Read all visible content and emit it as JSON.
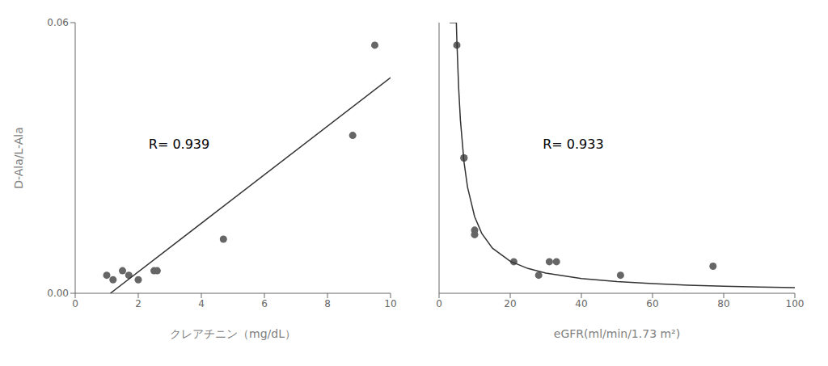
{
  "chart_data": [
    {
      "type": "scatter",
      "xlabel": "クレアチニン（mg/dL）",
      "ylabel": "D-Ala/L-Ala",
      "xlim": [
        0,
        10
      ],
      "ylim": [
        0,
        0.06
      ],
      "xticks": [
        0,
        2,
        4,
        6,
        8,
        10
      ],
      "yticks": [
        {
          "value": 0,
          "label": "0.00"
        },
        0.06
      ],
      "grid": false,
      "series": [
        {
          "type": "scatter",
          "color": "#666666",
          "x": [
            1.0,
            1.2,
            1.5,
            1.7,
            2.0,
            2.5,
            2.6,
            4.7,
            8.8,
            9.5
          ],
          "values": [
            0.004,
            0.003,
            0.005,
            0.004,
            0.003,
            0.005,
            0.005,
            0.012,
            0.035,
            0.055
          ]
        },
        {
          "type": "line",
          "color": "#333333",
          "x": [
            1.115,
            10
          ],
          "values": [
            0,
            0.0478
          ]
        }
      ],
      "annotations": [
        {
          "text": "R= 0.939",
          "x": 2.2,
          "y": 0.033
        }
      ]
    },
    {
      "type": "scatter",
      "xlabel": "eGFR(ml/min/1.73 m²)",
      "xlim": [
        0,
        100
      ],
      "ylim": [
        0,
        0.06
      ],
      "xticks": [
        0,
        20,
        40,
        60,
        80,
        100
      ],
      "yticks": [
        0,
        0.06
      ],
      "tick_labels": "x",
      "grid": false,
      "series": [
        {
          "type": "scatter",
          "color": "#666666",
          "x": [
            5,
            7,
            7,
            10,
            10,
            21,
            28,
            31,
            33,
            51,
            77
          ],
          "values": [
            0.055,
            0.03,
            0.03,
            0.014,
            0.013,
            0.007,
            0.004,
            0.007,
            0.007,
            0.004,
            0.006
          ]
        },
        {
          "type": "line",
          "color": "#333333",
          "x": [
            3,
            4.86,
            5,
            5.5,
            6,
            7,
            8,
            10,
            12,
            15,
            20,
            25,
            30,
            40,
            50,
            60,
            70,
            80,
            90,
            100
          ],
          "values": [
            0.06,
            0.06,
            0.05608,
            0.04558,
            0.03839,
            0.02918,
            0.02354,
            0.01697,
            0.01327,
            0.01,
            0.00709,
            0.00549,
            0.00448,
            0.00327,
            0.00258,
            0.00213,
            0.00181,
            0.00158,
            0.0014,
            0.00125
          ]
        }
      ],
      "annotations": [
        {
          "text": "R= 0.933",
          "x": 28,
          "y": 0.033
        }
      ]
    }
  ]
}
